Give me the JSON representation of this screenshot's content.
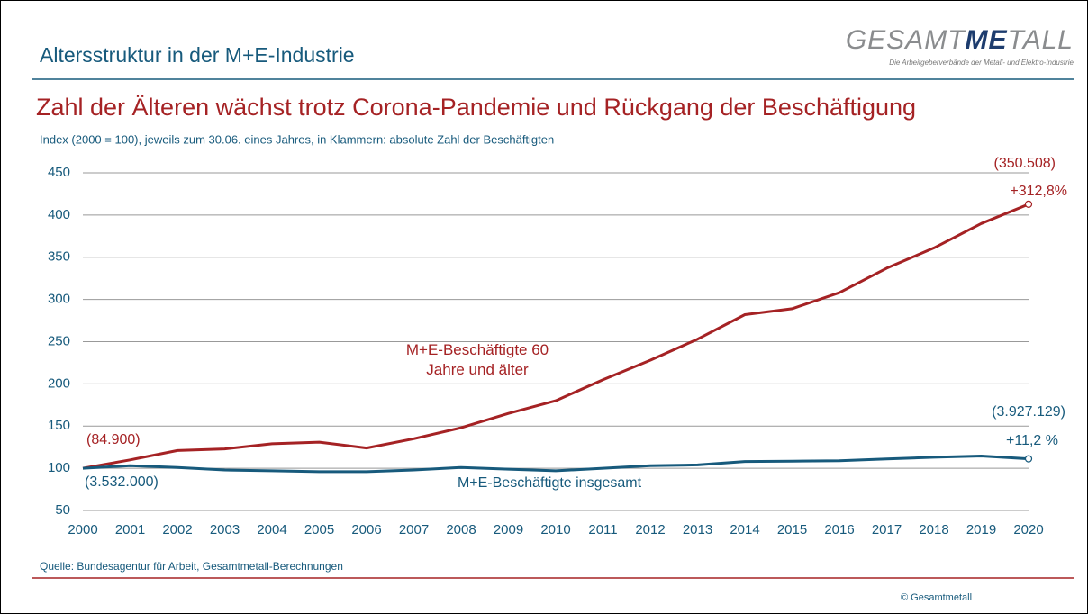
{
  "header": {
    "title": "Altersstruktur in der M+E-Industrie"
  },
  "logo": {
    "prefix": "GESAMT",
    "mark": "ME",
    "suffix": "TALL",
    "tagline": "Die Arbeitgeberverbände der Metall- und Elektro-Industrie"
  },
  "chart_data": {
    "type": "line",
    "title": "Zahl der Älteren wächst trotz Corona-Pandemie und Rückgang der Beschäftigung",
    "subtitle": "Index (2000 = 100),  jeweils zum 30.06. eines Jahres, in Klammern: absolute Zahl der Beschäftigten",
    "x": [
      2000,
      2001,
      2002,
      2003,
      2004,
      2005,
      2006,
      2007,
      2008,
      2009,
      2010,
      2011,
      2012,
      2013,
      2014,
      2015,
      2016,
      2017,
      2018,
      2019,
      2020
    ],
    "xlim": [
      2000,
      2020
    ],
    "xticks": [
      2000,
      2001,
      2002,
      2003,
      2004,
      2005,
      2006,
      2007,
      2008,
      2009,
      2010,
      2011,
      2012,
      2013,
      2014,
      2015,
      2016,
      2017,
      2018,
      2019,
      2020
    ],
    "ylim": [
      50,
      450
    ],
    "yticks": [
      50,
      100,
      150,
      200,
      250,
      300,
      350,
      400,
      450
    ],
    "grid": true,
    "series": [
      {
        "name": "M+E-Beschäftigte 60 Jahre und älter",
        "color": "#a52224",
        "values": [
          100,
          110,
          121,
          123,
          129,
          131,
          124,
          135,
          148,
          165,
          180,
          205,
          228,
          253,
          282,
          289,
          308,
          337,
          361,
          390,
          412.8
        ]
      },
      {
        "name": "M+E-Beschäftigte insgesamt",
        "color": "#175a7c",
        "values": [
          100,
          103,
          101,
          98,
          97,
          96,
          96,
          98,
          101,
          99,
          97,
          100,
          103,
          104,
          108,
          108.5,
          109,
          111,
          113,
          114.5,
          111.2
        ]
      }
    ],
    "annotations": [
      {
        "text": "(84.900)",
        "series": 0
      },
      {
        "text": "(3.532.000)",
        "series": 1
      },
      {
        "text": "(350.508)",
        "series": 0
      },
      {
        "text": "+312,8%",
        "series": 0
      },
      {
        "text": "(3.927.129)",
        "series": 1
      },
      {
        "text": "+11,2 %",
        "series": 1
      }
    ]
  },
  "footer": {
    "source": "Quelle: Bundesagentur für Arbeit, Gesamtmetall-Berechnungen",
    "copyright": "© Gesamtmetall"
  }
}
